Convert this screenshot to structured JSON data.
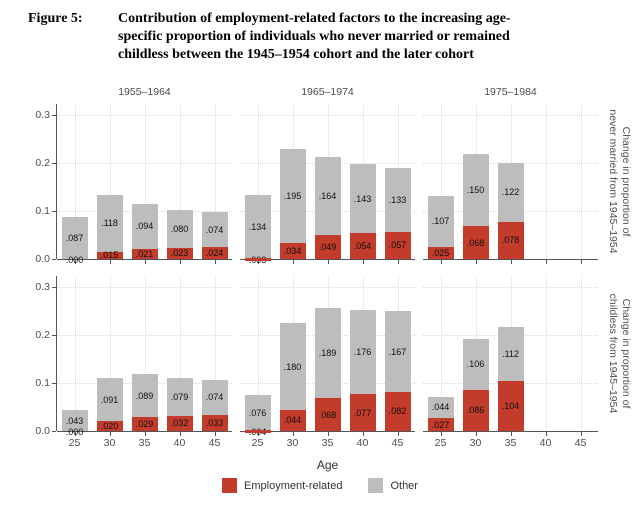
{
  "figure": {
    "label": "Figure 5:",
    "title_lines": [
      "Contribution of employment-related factors to the increasing age-",
      "specific proportion of individuals who never married or remained",
      "childless between the 1945–1954 cohort and the later cohort"
    ]
  },
  "chart_data": {
    "type": "bar",
    "stacked": true,
    "xlabel": "Age",
    "x_ticks": [
      "25",
      "30",
      "35",
      "40",
      "45"
    ],
    "y_ticks": [
      "0.0",
      "0.1",
      "0.2",
      "0.3"
    ],
    "y_tick_values": [
      0,
      0.1,
      0.2,
      0.3
    ],
    "ylim": [
      0,
      0.31
    ],
    "grid": "dotted-major",
    "legend_position": "bottom",
    "columns": [
      "1955–1964",
      "1965–1974",
      "1975–1984"
    ],
    "rows": [
      {
        "strip_lines": [
          "Change in proportion of",
          "never married from 1945–1954"
        ]
      },
      {
        "strip_lines": [
          "Change in proportion of",
          "childless from 1945–1954"
        ]
      }
    ],
    "legend": [
      {
        "label": "Employment-related",
        "color": "#c23b2b"
      },
      {
        "label": "Other",
        "color": "#bdbdbd"
      }
    ],
    "panels": [
      {
        "row": 0,
        "col": 0,
        "cohort": "1955–1964",
        "outcome": "never married",
        "bars": [
          {
            "age": "25",
            "employment": 0.0,
            "other": 0.087,
            "employment_label": ".000",
            "other_label": ".087"
          },
          {
            "age": "30",
            "employment": 0.015,
            "other": 0.118,
            "employment_label": ".015",
            "other_label": ".118"
          },
          {
            "age": "35",
            "employment": 0.021,
            "other": 0.094,
            "employment_label": ".021",
            "other_label": ".094"
          },
          {
            "age": "40",
            "employment": 0.023,
            "other": 0.08,
            "employment_label": ".023",
            "other_label": ".080"
          },
          {
            "age": "45",
            "employment": 0.024,
            "other": 0.074,
            "employment_label": ".024",
            "other_label": ".074"
          }
        ]
      },
      {
        "row": 0,
        "col": 1,
        "cohort": "1965–1974",
        "outcome": "never married",
        "bars": [
          {
            "age": "25",
            "employment": -0.003,
            "other": 0.134,
            "employment_label": ".003",
            "other_label": ".134"
          },
          {
            "age": "30",
            "employment": 0.034,
            "other": 0.195,
            "employment_label": ".034",
            "other_label": ".195"
          },
          {
            "age": "35",
            "employment": 0.049,
            "other": 0.164,
            "employment_label": ".049",
            "other_label": ".164"
          },
          {
            "age": "40",
            "employment": 0.054,
            "other": 0.143,
            "employment_label": ".054",
            "other_label": ".143"
          },
          {
            "age": "45",
            "employment": 0.057,
            "other": 0.133,
            "employment_label": ".057",
            "other_label": ".133"
          }
        ]
      },
      {
        "row": 0,
        "col": 2,
        "cohort": "1975–1984",
        "outcome": "never married",
        "bars": [
          {
            "age": "25",
            "employment": 0.025,
            "other": 0.107,
            "employment_label": ".025",
            "other_label": ".107"
          },
          {
            "age": "30",
            "employment": 0.068,
            "other": 0.15,
            "employment_label": ".068",
            "other_label": ".150"
          },
          {
            "age": "35",
            "employment": 0.078,
            "other": 0.122,
            "employment_label": ".078",
            "other_label": ".122"
          }
        ]
      },
      {
        "row": 1,
        "col": 0,
        "cohort": "1955–1964",
        "outcome": "childless",
        "bars": [
          {
            "age": "25",
            "employment": 0.0,
            "other": 0.043,
            "employment_label": ".000",
            "other_label": ".043"
          },
          {
            "age": "30",
            "employment": 0.02,
            "other": 0.091,
            "employment_label": ".020",
            "other_label": ".091"
          },
          {
            "age": "35",
            "employment": 0.029,
            "other": 0.089,
            "employment_label": ".029",
            "other_label": ".089"
          },
          {
            "age": "40",
            "employment": 0.032,
            "other": 0.079,
            "employment_label": ".032",
            "other_label": ".079"
          },
          {
            "age": "45",
            "employment": 0.033,
            "other": 0.074,
            "employment_label": ".033",
            "other_label": ".074"
          }
        ]
      },
      {
        "row": 1,
        "col": 1,
        "cohort": "1965–1974",
        "outcome": "childless",
        "bars": [
          {
            "age": "25",
            "employment": -0.004,
            "other": 0.076,
            "employment_label": ".004",
            "other_label": ".076"
          },
          {
            "age": "30",
            "employment": 0.044,
            "other": 0.18,
            "employment_label": ".044",
            "other_label": ".180"
          },
          {
            "age": "35",
            "employment": 0.068,
            "other": 0.189,
            "employment_label": ".068",
            "other_label": ".189"
          },
          {
            "age": "40",
            "employment": 0.077,
            "other": 0.176,
            "employment_label": ".077",
            "other_label": ".176"
          },
          {
            "age": "45",
            "employment": 0.082,
            "other": 0.167,
            "employment_label": ".082",
            "other_label": ".167"
          }
        ]
      },
      {
        "row": 1,
        "col": 2,
        "cohort": "1975–1984",
        "outcome": "childless",
        "bars": [
          {
            "age": "25",
            "employment": 0.027,
            "other": 0.044,
            "employment_label": ".027",
            "other_label": ".044"
          },
          {
            "age": "30",
            "employment": 0.086,
            "other": 0.106,
            "employment_label": ".086",
            "other_label": ".106"
          },
          {
            "age": "35",
            "employment": 0.104,
            "other": 0.112,
            "employment_label": ".104",
            "other_label": ".112"
          }
        ]
      }
    ]
  }
}
